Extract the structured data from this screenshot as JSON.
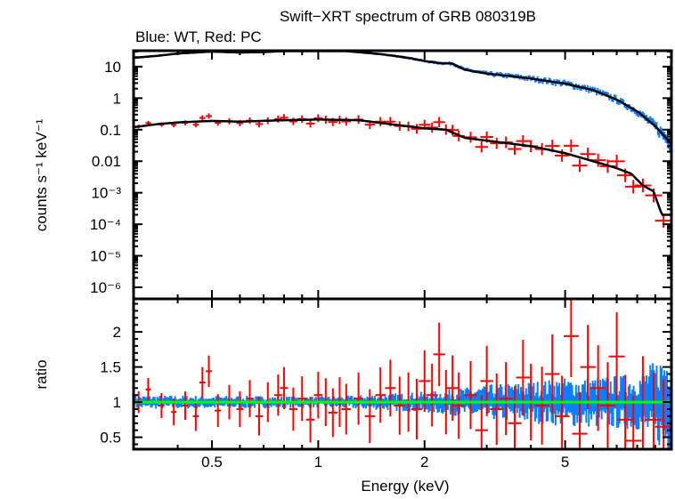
{
  "chart_data": [
    {
      "type": "scatter",
      "title": "Swift−XRT spectrum of GRB 080319B",
      "subtitle": "Blue: WT, Red: PC",
      "xlabel": "Energy (keV)",
      "ylabel": "counts s⁻¹ keV⁻¹",
      "xscale": "log",
      "yscale": "log",
      "xlim": [
        0.3,
        10
      ],
      "ylim": [
        4.3e-07,
        32
      ],
      "x_ticks": [
        "0.5",
        "1",
        "2",
        "5"
      ],
      "y_ticks": [
        "10",
        "1",
        "0.1",
        "0.01",
        "10⁻³",
        "10⁻⁴",
        "10⁻⁵",
        "10⁻⁶"
      ],
      "series": [
        {
          "name": "WT",
          "color": "#0a7fff",
          "model_x": [
            0.3,
            0.35,
            0.4,
            0.5,
            0.6,
            0.7,
            0.8,
            1.0,
            1.2,
            1.5,
            1.8,
            2.0,
            2.2,
            2.4,
            2.6,
            3.0,
            3.5,
            4.0,
            5.0,
            6.0,
            7.0,
            8.0,
            9.0,
            10.0
          ],
          "model_y": [
            19,
            22,
            26,
            30,
            28,
            29,
            31,
            31,
            31,
            25,
            19,
            15,
            13,
            12.5,
            8,
            6,
            5,
            4.2,
            2.9,
            1.8,
            0.9,
            0.38,
            0.13,
            0.035
          ]
        },
        {
          "name": "PC",
          "color": "#ff0000",
          "model_x": [
            0.3,
            0.35,
            0.4,
            0.5,
            0.6,
            0.8,
            1.0,
            1.3,
            1.6,
            2.0,
            2.3,
            2.6,
            3.0,
            4.0,
            5.0,
            6.0,
            7.0,
            7.7,
            8.3,
            8.9,
            9.4,
            10.0
          ],
          "model_y": [
            0.12,
            0.15,
            0.17,
            0.19,
            0.18,
            0.2,
            0.21,
            0.2,
            0.15,
            0.11,
            0.1,
            0.055,
            0.045,
            0.03,
            0.018,
            0.01,
            0.006,
            0.004,
            0.0017,
            0.0011,
            0.0002,
            0.0002
          ]
        }
      ]
    },
    {
      "type": "scatter",
      "xlabel": "Energy (keV)",
      "ylabel": "ratio",
      "xscale": "log",
      "xlim": [
        0.3,
        10
      ],
      "ylim": [
        0.33,
        2.47
      ],
      "x_ticks": [
        "0.5",
        "1",
        "2",
        "5"
      ],
      "y_ticks": [
        "0.5",
        "1",
        "1.5",
        "2"
      ],
      "reference_line": {
        "value": 1,
        "color": "#00ff00"
      },
      "series": [
        {
          "name": "WT",
          "color": "#0a7fff",
          "ratio_spread": [
            [
              0.3,
              0.1
            ],
            [
              1,
              0.08
            ],
            [
              2,
              0.15
            ],
            [
              3,
              0.25
            ],
            [
              5,
              0.35
            ],
            [
              8,
              0.4
            ],
            [
              10,
              0.8
            ]
          ]
        },
        {
          "name": "PC",
          "color": "#ff0000",
          "x": [
            0.31,
            0.33,
            0.36,
            0.39,
            0.42,
            0.45,
            0.47,
            0.49,
            0.52,
            0.56,
            0.6,
            0.64,
            0.68,
            0.72,
            0.77,
            0.8,
            0.85,
            0.9,
            0.95,
            1.0,
            1.05,
            1.1,
            1.15,
            1.2,
            1.3,
            1.4,
            1.5,
            1.6,
            1.7,
            1.8,
            1.9,
            2.0,
            2.1,
            2.2,
            2.3,
            2.4,
            2.5,
            2.7,
            2.9,
            3.0,
            3.2,
            3.4,
            3.6,
            3.8,
            4.0,
            4.3,
            4.6,
            4.9,
            5.2,
            5.5,
            5.8,
            6.2,
            6.6,
            7.0,
            7.4,
            7.8,
            8.3,
            8.9,
            9.5
          ],
          "y": [
            1.0,
            1.18,
            0.95,
            0.86,
            0.95,
            0.8,
            1.28,
            1.44,
            0.88,
            1.0,
            0.9,
            1.05,
            0.8,
            1.0,
            1.1,
            1.2,
            0.9,
            1.05,
            0.75,
            1.1,
            1.0,
            0.85,
            1.0,
            0.9,
            1.05,
            0.8,
            1.1,
            1.2,
            0.95,
            1.0,
            0.9,
            1.3,
            1.1,
            1.68,
            1.0,
            1.2,
            0.95,
            1.1,
            0.6,
            1.3,
            0.9,
            1.05,
            0.7,
            1.35,
            1.0,
            0.95,
            1.4,
            0.8,
            1.94,
            0.55,
            1.5,
            1.2,
            0.95,
            1.65,
            0.75,
            0.45,
            1.0,
            0.75,
            0.65
          ]
        }
      ]
    }
  ]
}
